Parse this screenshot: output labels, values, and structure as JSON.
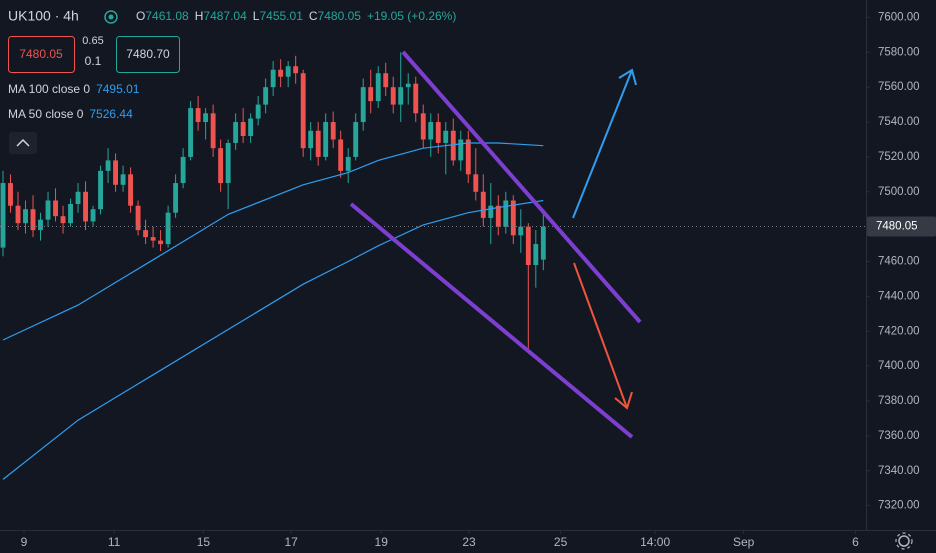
{
  "chart_data": {
    "type": "candlestick",
    "symbol": "UK100 · 4h",
    "header_ohlc": [
      {
        "key": "O",
        "value": 7461.08
      },
      {
        "key": "H",
        "value": 7487.04
      },
      {
        "key": "L",
        "value": 7455.01
      },
      {
        "key": "C",
        "value": 7480.05
      }
    ],
    "change": "+19.05 (+0.26%)",
    "trade_panel": {
      "sell": "7480.05",
      "spread": "0.65",
      "quantity": "0.1",
      "buy": "7480.70"
    },
    "x": [
      0,
      1,
      2,
      3,
      4,
      5,
      6,
      7,
      8,
      9,
      10,
      11,
      12,
      13,
      14,
      15,
      16,
      17,
      18,
      19,
      20,
      21,
      22,
      23,
      24,
      25,
      26,
      27,
      28,
      29,
      30,
      31,
      32,
      33,
      34,
      35,
      36,
      37,
      38,
      39,
      40,
      41,
      42,
      43,
      44,
      45,
      46,
      47,
      48,
      49,
      50,
      51,
      52,
      53,
      54,
      55,
      56,
      57,
      58,
      59,
      60,
      61,
      62,
      63,
      64,
      65,
      66,
      67,
      68,
      69,
      70,
      71,
      72
    ],
    "open": [
      7468,
      7505,
      7492,
      7482,
      7490,
      7478,
      7484,
      7495,
      7486,
      7482,
      7493,
      7500,
      7483,
      7490,
      7512,
      7518,
      7504,
      7510,
      7492,
      7478,
      7474,
      7472,
      7470,
      7488,
      7505,
      7520,
      7548,
      7540,
      7545,
      7525,
      7505,
      7528,
      7540,
      7532,
      7542,
      7550,
      7560,
      7570,
      7566,
      7572,
      7568,
      7525,
      7535,
      7520,
      7540,
      7530,
      7512,
      7520,
      7540,
      7560,
      7552,
      7568,
      7560,
      7550,
      7560,
      7562,
      7545,
      7530,
      7540,
      7528,
      7535,
      7518,
      7530,
      7510,
      7500,
      7485,
      7492,
      7480,
      7495,
      7475,
      7480,
      7458,
      7461.08
    ],
    "high": [
      7512,
      7510,
      7500,
      7495,
      7498,
      7488,
      7500,
      7502,
      7492,
      7496,
      7505,
      7506,
      7492,
      7515,
      7525,
      7522,
      7515,
      7514,
      7495,
      7484,
      7480,
      7478,
      7492,
      7510,
      7525,
      7552,
      7555,
      7548,
      7550,
      7530,
      7530,
      7545,
      7548,
      7545,
      7555,
      7565,
      7575,
      7576,
      7575,
      7578,
      7570,
      7540,
      7540,
      7545,
      7546,
      7535,
      7525,
      7545,
      7565,
      7570,
      7572,
      7574,
      7566,
      7580,
      7568,
      7566,
      7550,
      7545,
      7545,
      7540,
      7542,
      7535,
      7535,
      7525,
      7510,
      7505,
      7498,
      7500,
      7498,
      7490,
      7482,
      7478,
      7487.04
    ],
    "low": [
      7463,
      7488,
      7478,
      7476,
      7474,
      7472,
      7480,
      7483,
      7476,
      7480,
      7488,
      7478,
      7480,
      7487,
      7505,
      7500,
      7500,
      7488,
      7475,
      7470,
      7468,
      7466,
      7468,
      7485,
      7502,
      7518,
      7535,
      7530,
      7520,
      7500,
      7490,
      7524,
      7528,
      7528,
      7538,
      7545,
      7555,
      7560,
      7560,
      7562,
      7520,
      7518,
      7515,
      7518,
      7525,
      7508,
      7505,
      7518,
      7535,
      7545,
      7548,
      7555,
      7545,
      7540,
      7550,
      7540,
      7525,
      7520,
      7522,
      7510,
      7515,
      7512,
      7505,
      7495,
      7480,
      7470,
      7475,
      7476,
      7470,
      7465,
      7410,
      7445,
      7455.01
    ],
    "close": [
      7505,
      7492,
      7482,
      7490,
      7478,
      7484,
      7495,
      7486,
      7482,
      7493,
      7500,
      7483,
      7490,
      7512,
      7518,
      7504,
      7510,
      7492,
      7478,
      7474,
      7472,
      7470,
      7488,
      7505,
      7520,
      7548,
      7540,
      7545,
      7525,
      7505,
      7528,
      7540,
      7532,
      7542,
      7550,
      7560,
      7570,
      7566,
      7572,
      7568,
      7525,
      7535,
      7520,
      7540,
      7530,
      7512,
      7520,
      7540,
      7560,
      7552,
      7568,
      7560,
      7550,
      7560,
      7562,
      7545,
      7530,
      7540,
      7528,
      7535,
      7518,
      7530,
      7510,
      7500,
      7485,
      7492,
      7480,
      7495,
      7475,
      7480,
      7458,
      7470,
      7480.05
    ],
    "up_color": "#26a69a",
    "down_color": "#ef5350",
    "series": [
      {
        "name": "MA 100 close 0",
        "type": "line",
        "color": "#2f9ef0",
        "x": [
          0,
          10,
          20,
          30,
          40,
          46,
          50,
          56,
          62,
          66,
          72
        ],
        "values": [
          7335,
          7369,
          7395,
          7421,
          7447,
          7460,
          7469,
          7481,
          7488,
          7491,
          7495.01
        ]
      },
      {
        "name": "MA 50 close 0",
        "type": "line",
        "color": "#2f9ef0",
        "x": [
          0,
          10,
          20,
          30,
          40,
          46,
          50,
          56,
          62,
          66,
          72
        ],
        "values": [
          7415,
          7435,
          7461,
          7487,
          7504,
          7511,
          7518,
          7525,
          7528,
          7528,
          7526.44
        ]
      }
    ],
    "xlim": [
      -0.4,
      115
    ],
    "xticks": [
      {
        "value": 2.8,
        "label": "9"
      },
      {
        "value": 14.8,
        "label": "11"
      },
      {
        "value": 26.7,
        "label": "15"
      },
      {
        "value": 38.4,
        "label": "17"
      },
      {
        "value": 50.4,
        "label": "19"
      },
      {
        "value": 62.1,
        "label": "23"
      },
      {
        "value": 74.3,
        "label": "25"
      },
      {
        "value": 86.9,
        "label": "14:00"
      },
      {
        "value": 98.7,
        "label": "Sep"
      },
      {
        "value": 113.6,
        "label": "6"
      }
    ],
    "ylim": [
      7306,
      7610
    ],
    "yticks": [
      {
        "value": 7320,
        "label": "7320.00"
      },
      {
        "value": 7340,
        "label": "7340.00"
      },
      {
        "value": 7360,
        "label": "7360.00"
      },
      {
        "value": 7380,
        "label": "7380.00"
      },
      {
        "value": 7400,
        "label": "7400.00"
      },
      {
        "value": 7420,
        "label": "7420.00"
      },
      {
        "value": 7440,
        "label": "7440.00"
      },
      {
        "value": 7460,
        "label": "7460.00"
      },
      {
        "value": 7480,
        "label": "7480.00"
      },
      {
        "value": 7500,
        "label": "7500.00"
      },
      {
        "value": 7520,
        "label": "7520.00"
      },
      {
        "value": 7540,
        "label": "7540.00"
      },
      {
        "value": 7560,
        "label": "7560.00"
      },
      {
        "value": 7580,
        "label": "7580.00"
      },
      {
        "value": 7600,
        "label": "7600.00"
      }
    ],
    "grid": false
  }
}
